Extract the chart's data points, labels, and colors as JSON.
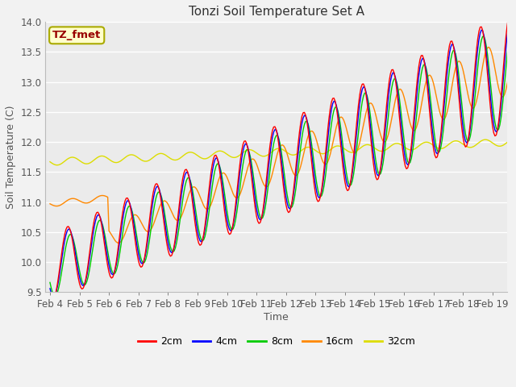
{
  "title": "Tonzi Soil Temperature Set A",
  "xlabel": "Time",
  "ylabel": "Soil Temperature (C)",
  "ylim": [
    9.5,
    14.0
  ],
  "annotation": "TZ_fmet",
  "series_colors": [
    "#ff0000",
    "#0000ff",
    "#00cc00",
    "#ff8800",
    "#dddd00"
  ],
  "series_labels": [
    "2cm",
    "4cm",
    "8cm",
    "16cm",
    "32cm"
  ],
  "xtick_labels": [
    "Feb 4",
    "Feb 5",
    "Feb 6",
    "Feb 7",
    "Feb 8",
    "Feb 9",
    "Feb 10",
    "Feb 11",
    "Feb 12",
    "Feb 13",
    "Feb 14",
    "Feb 15",
    "Feb 16",
    "Feb 17",
    "Feb 18",
    "Feb 19"
  ],
  "title_fontsize": 11,
  "label_fontsize": 9,
  "tick_fontsize": 8.5,
  "legend_fontsize": 9
}
